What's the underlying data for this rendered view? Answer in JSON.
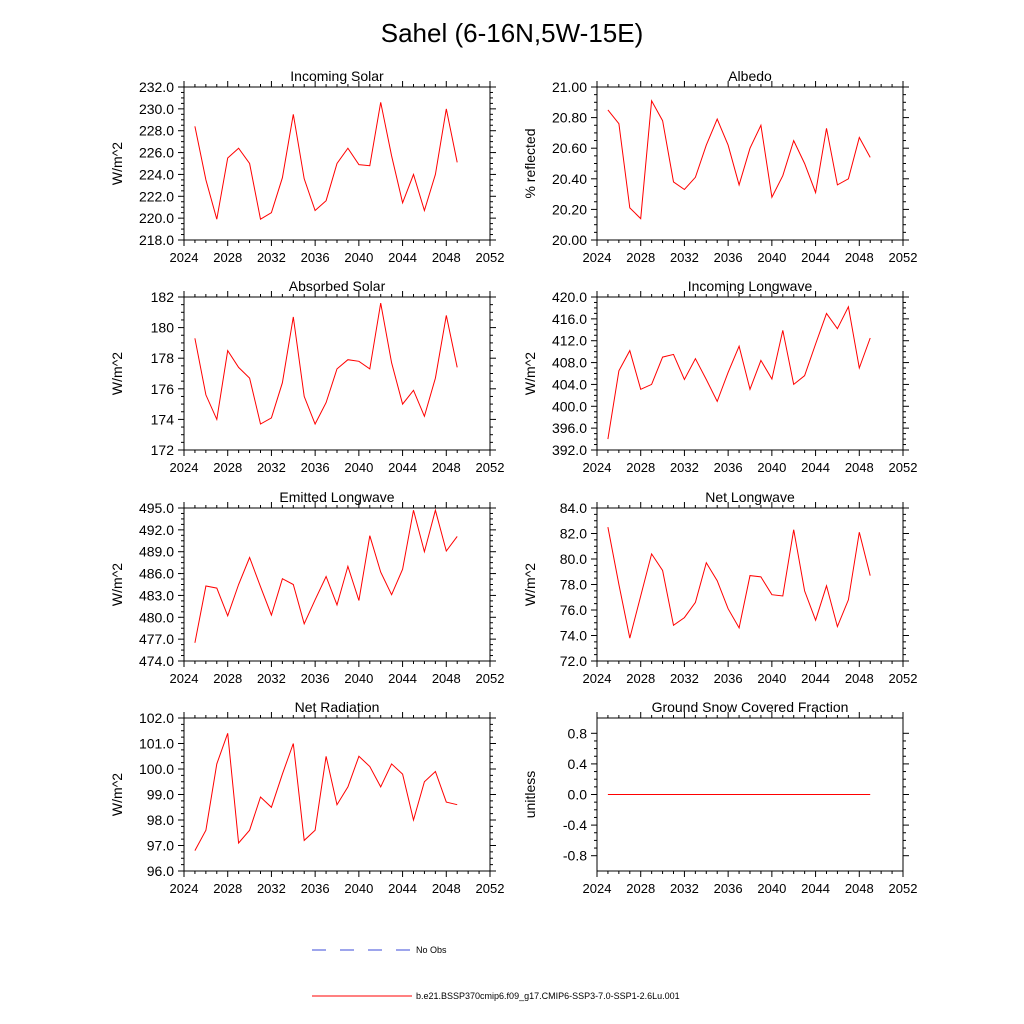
{
  "figure": {
    "title": "Sahel (6-16N,5W-15E)",
    "legend": [
      {
        "label": "No Obs",
        "color": "#3b4bd8",
        "dash": true
      },
      {
        "label": "b.e21.BSSP370cmip6.f09_g17.CMIP6-SSP3-7.0-SSP1-2.6Lu.001",
        "color": "#ff0000",
        "dash": false
      }
    ]
  },
  "chart_data": [
    {
      "type": "line",
      "title": "Incoming Solar",
      "ylabel": "W/m^2",
      "xlim": [
        2024,
        2052
      ],
      "xticks": [
        "2024",
        "2028",
        "2032",
        "2036",
        "2040",
        "2044",
        "2048",
        "2052"
      ],
      "ylim": [
        218,
        232
      ],
      "yticks": [
        "218.0",
        "220.0",
        "222.0",
        "224.0",
        "226.0",
        "228.0",
        "230.0",
        "232.0"
      ],
      "series": [
        {
          "color": "#ff0000",
          "x": [
            2025,
            2026,
            2027,
            2028,
            2029,
            2030,
            2031,
            2032,
            2033,
            2034,
            2035,
            2036,
            2037,
            2038,
            2039,
            2040,
            2041,
            2042,
            2043,
            2044,
            2045,
            2046,
            2047,
            2048,
            2049
          ],
          "values": [
            228.4,
            223.5,
            219.9,
            225.5,
            226.4,
            225.0,
            219.9,
            220.5,
            223.7,
            229.5,
            223.6,
            220.7,
            221.6,
            225.0,
            226.4,
            224.9,
            224.8,
            230.6,
            225.7,
            221.4,
            224.0,
            220.7,
            224.0,
            230.0,
            225.1
          ]
        }
      ]
    },
    {
      "type": "line",
      "title": "Albedo",
      "ylabel": "% reflected",
      "xlim": [
        2024,
        2052
      ],
      "xticks": [
        "2024",
        "2028",
        "2032",
        "2036",
        "2040",
        "2044",
        "2048",
        "2052"
      ],
      "ylim": [
        20.0,
        21.0
      ],
      "yticks": [
        "20.00",
        "20.20",
        "20.40",
        "20.60",
        "20.80",
        "21.00"
      ],
      "series": [
        {
          "color": "#ff0000",
          "x": [
            2025,
            2026,
            2027,
            2028,
            2029,
            2030,
            2031,
            2032,
            2033,
            2034,
            2035,
            2036,
            2037,
            2038,
            2039,
            2040,
            2041,
            2042,
            2043,
            2044,
            2045,
            2046,
            2047,
            2048,
            2049
          ],
          "values": [
            20.85,
            20.76,
            20.21,
            20.14,
            20.91,
            20.78,
            20.38,
            20.33,
            20.41,
            20.62,
            20.79,
            20.62,
            20.36,
            20.6,
            20.75,
            20.28,
            20.42,
            20.65,
            20.5,
            20.31,
            20.73,
            20.36,
            20.4,
            20.67,
            20.54
          ]
        }
      ]
    },
    {
      "type": "line",
      "title": "Absorbed Solar",
      "ylabel": "W/m^2",
      "xlim": [
        2024,
        2052
      ],
      "xticks": [
        "2024",
        "2028",
        "2032",
        "2036",
        "2040",
        "2044",
        "2048",
        "2052"
      ],
      "ylim": [
        172,
        182
      ],
      "yticks": [
        "172",
        "174",
        "176",
        "178",
        "180",
        "182"
      ],
      "series": [
        {
          "color": "#ff0000",
          "x": [
            2025,
            2026,
            2027,
            2028,
            2029,
            2030,
            2031,
            2032,
            2033,
            2034,
            2035,
            2036,
            2037,
            2038,
            2039,
            2040,
            2041,
            2042,
            2043,
            2044,
            2045,
            2046,
            2047,
            2048,
            2049
          ],
          "values": [
            179.3,
            175.6,
            174.0,
            178.5,
            177.4,
            176.7,
            173.7,
            174.1,
            176.4,
            180.7,
            175.5,
            173.7,
            175.1,
            177.3,
            177.9,
            177.8,
            177.3,
            181.6,
            177.7,
            175.0,
            175.9,
            174.2,
            176.7,
            180.8,
            177.4
          ]
        }
      ]
    },
    {
      "type": "line",
      "title": "Incoming Longwave",
      "ylabel": "W/m^2",
      "xlim": [
        2024,
        2052
      ],
      "xticks": [
        "2024",
        "2028",
        "2032",
        "2036",
        "2040",
        "2044",
        "2048",
        "2052"
      ],
      "ylim": [
        392,
        420
      ],
      "yticks": [
        "392.0",
        "396.0",
        "400.0",
        "404.0",
        "408.0",
        "412.0",
        "416.0",
        "420.0"
      ],
      "series": [
        {
          "color": "#ff0000",
          "x": [
            2025,
            2026,
            2027,
            2028,
            2029,
            2030,
            2031,
            2032,
            2033,
            2034,
            2035,
            2036,
            2037,
            2038,
            2039,
            2040,
            2041,
            2042,
            2043,
            2044,
            2045,
            2046,
            2047,
            2048,
            2049
          ],
          "values": [
            394.0,
            406.5,
            410.2,
            403.1,
            404.0,
            409.0,
            409.5,
            404.9,
            408.7,
            404.9,
            400.9,
            406.2,
            411.0,
            403.1,
            408.4,
            405.0,
            413.9,
            404.0,
            405.6,
            411.4,
            417.0,
            414.2,
            418.2,
            407.0,
            412.5
          ]
        }
      ]
    },
    {
      "type": "line",
      "title": "Emitted Longwave",
      "ylabel": "W/m^2",
      "xlim": [
        2024,
        2052
      ],
      "xticks": [
        "2024",
        "2028",
        "2032",
        "2036",
        "2040",
        "2044",
        "2048",
        "2052"
      ],
      "ylim": [
        474,
        495
      ],
      "yticks": [
        "474.0",
        "477.0",
        "480.0",
        "483.0",
        "486.0",
        "489.0",
        "492.0",
        "495.0"
      ],
      "series": [
        {
          "color": "#ff0000",
          "x": [
            2025,
            2026,
            2027,
            2028,
            2029,
            2030,
            2031,
            2032,
            2033,
            2034,
            2035,
            2036,
            2037,
            2038,
            2039,
            2040,
            2041,
            2042,
            2043,
            2044,
            2045,
            2046,
            2047,
            2048,
            2049
          ],
          "values": [
            476.5,
            484.3,
            484.0,
            480.2,
            484.5,
            488.2,
            484.2,
            480.3,
            485.3,
            484.5,
            479.1,
            482.4,
            485.6,
            481.7,
            487.0,
            482.3,
            491.2,
            486.2,
            483.1,
            486.6,
            494.7,
            489.0,
            494.7,
            489.1,
            491.1
          ]
        }
      ]
    },
    {
      "type": "line",
      "title": "Net Longwave",
      "ylabel": "W/m^2",
      "xlim": [
        2024,
        2052
      ],
      "xticks": [
        "2024",
        "2028",
        "2032",
        "2036",
        "2040",
        "2044",
        "2048",
        "2052"
      ],
      "ylim": [
        72,
        84
      ],
      "yticks": [
        "72.0",
        "74.0",
        "76.0",
        "78.0",
        "80.0",
        "82.0",
        "84.0"
      ],
      "series": [
        {
          "color": "#ff0000",
          "x": [
            2025,
            2026,
            2027,
            2028,
            2029,
            2030,
            2031,
            2032,
            2033,
            2034,
            2035,
            2036,
            2037,
            2038,
            2039,
            2040,
            2041,
            2042,
            2043,
            2044,
            2045,
            2046,
            2047,
            2048,
            2049
          ],
          "values": [
            82.5,
            78.0,
            73.8,
            77.1,
            80.4,
            79.1,
            74.8,
            75.4,
            76.6,
            79.7,
            78.3,
            76.1,
            74.6,
            78.7,
            78.6,
            77.2,
            77.1,
            82.3,
            77.5,
            75.2,
            77.9,
            74.7,
            76.8,
            82.1,
            78.7
          ]
        }
      ]
    },
    {
      "type": "line",
      "title": "Net Radiation",
      "ylabel": "W/m^2",
      "xlim": [
        2024,
        2052
      ],
      "xticks": [
        "2024",
        "2028",
        "2032",
        "2036",
        "2040",
        "2044",
        "2048",
        "2052"
      ],
      "ylim": [
        96,
        102
      ],
      "yticks": [
        "96.0",
        "97.0",
        "98.0",
        "99.0",
        "100.0",
        "101.0",
        "102.0"
      ],
      "series": [
        {
          "color": "#ff0000",
          "x": [
            2025,
            2026,
            2027,
            2028,
            2029,
            2030,
            2031,
            2032,
            2033,
            2034,
            2035,
            2036,
            2037,
            2038,
            2039,
            2040,
            2041,
            2042,
            2043,
            2044,
            2045,
            2046,
            2047,
            2048,
            2049
          ],
          "values": [
            96.8,
            97.6,
            100.2,
            101.4,
            97.1,
            97.6,
            98.9,
            98.5,
            99.8,
            101.0,
            97.2,
            97.6,
            100.5,
            98.6,
            99.3,
            100.5,
            100.1,
            99.3,
            100.2,
            99.8,
            98.0,
            99.5,
            99.9,
            98.7,
            98.6
          ]
        }
      ]
    },
    {
      "type": "line",
      "title": "Ground Snow Covered Fraction",
      "ylabel": "unitless",
      "xlim": [
        2024,
        2052
      ],
      "xticks": [
        "2024",
        "2028",
        "2032",
        "2036",
        "2040",
        "2044",
        "2048",
        "2052"
      ],
      "ylim": [
        -1.0,
        1.0
      ],
      "yticks": [
        "-0.8",
        "-0.4",
        "0.0",
        "0.4",
        "0.8"
      ],
      "ytickvals": [
        -0.8,
        -0.4,
        0.0,
        0.4,
        0.8
      ],
      "series": [
        {
          "color": "#ff0000",
          "x": [
            2025,
            2026,
            2027,
            2028,
            2029,
            2030,
            2031,
            2032,
            2033,
            2034,
            2035,
            2036,
            2037,
            2038,
            2039,
            2040,
            2041,
            2042,
            2043,
            2044,
            2045,
            2046,
            2047,
            2048,
            2049
          ],
          "values": [
            0,
            0,
            0,
            0,
            0,
            0,
            0,
            0,
            0,
            0,
            0,
            0,
            0,
            0,
            0,
            0,
            0,
            0,
            0,
            0,
            0,
            0,
            0,
            0,
            0
          ]
        }
      ]
    }
  ]
}
